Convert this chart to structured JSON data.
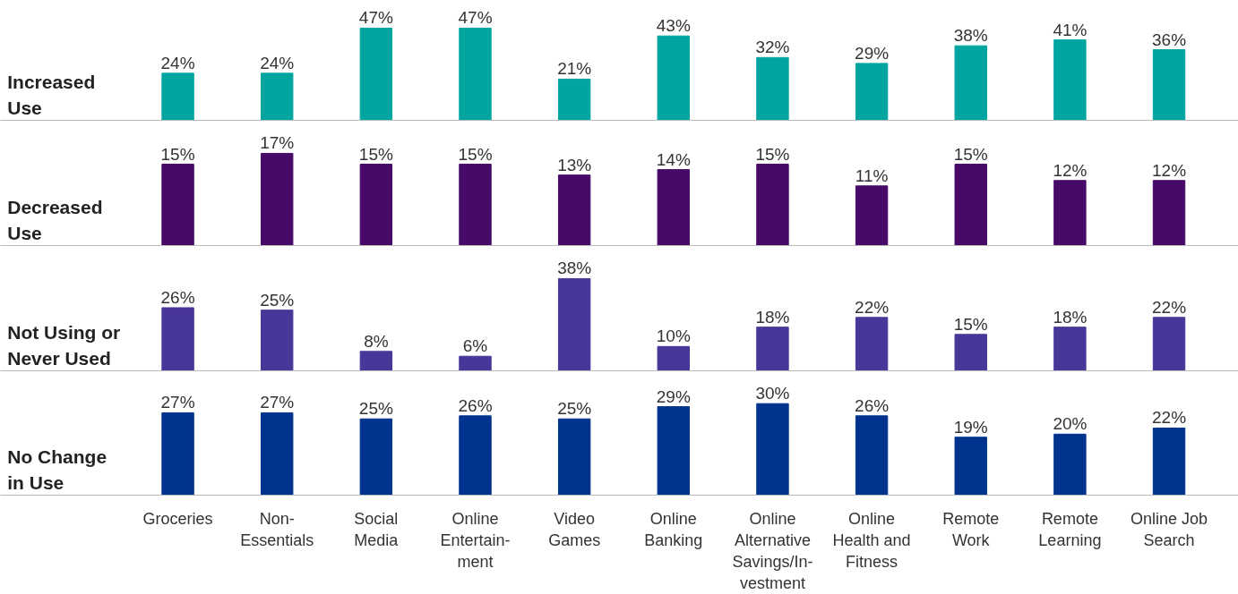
{
  "chart_data": [
    {
      "type": "bar",
      "ylabel": "Increased\nUse",
      "values": [
        24,
        24,
        47,
        47,
        21,
        43,
        32,
        29,
        38,
        41,
        36
      ],
      "value_labels": [
        "24%",
        "24%",
        "47%",
        "47%",
        "21%",
        "43%",
        "32%",
        "29%",
        "38%",
        "41%",
        "36%"
      ],
      "color": "#00a5a0",
      "tick_labels": false
    },
    {
      "type": "bar",
      "ylabel": "Decreased\nUse",
      "values": [
        15,
        17,
        15,
        15,
        13,
        14,
        15,
        11,
        15,
        12,
        12
      ],
      "value_labels": [
        "15%",
        "17%",
        "15%",
        "15%",
        "13%",
        "14%",
        "15%",
        "11%",
        "15%",
        "12%",
        "12%"
      ],
      "color": "#470a68",
      "tick_labels": false
    },
    {
      "type": "bar",
      "ylabel": "Not Using or\nNever Used",
      "values": [
        26,
        25,
        8,
        6,
        38,
        10,
        18,
        22,
        15,
        18,
        22
      ],
      "value_labels": [
        "26%",
        "25%",
        "8%",
        "6%",
        "38%",
        "10%",
        "18%",
        "22%",
        "15%",
        "18%",
        "22%"
      ],
      "color": "#483698",
      "tick_labels": false
    },
    {
      "type": "bar",
      "ylabel": "No Change\nin Use",
      "categories": [
        "Groceries",
        "Non-\nEssentials",
        "Social\nMedia",
        "Online\nEntertain-\nment",
        "Video\nGames",
        "Online\nBanking",
        "Online\nAlternative\nSavings/In-\nvestment",
        "Online\nHealth and\nFitness",
        "Remote\nWork",
        "Remote\nLearning",
        "Online Job\nSearch"
      ],
      "values": [
        27,
        27,
        25,
        26,
        25,
        29,
        30,
        26,
        19,
        20,
        22
      ],
      "value_labels": [
        "27%",
        "27%",
        "25%",
        "26%",
        "25%",
        "29%",
        "30%",
        "26%",
        "19%",
        "20%",
        "22%"
      ],
      "color": "#00338d",
      "tick_labels": "x"
    }
  ]
}
